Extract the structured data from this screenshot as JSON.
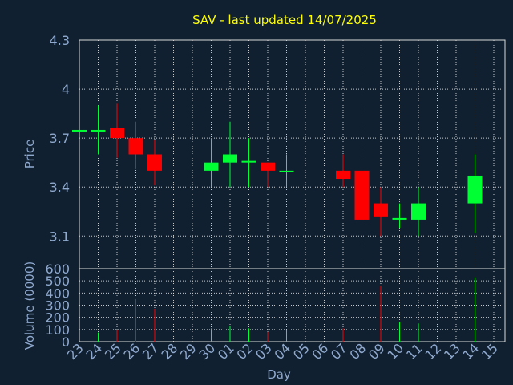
{
  "colors": {
    "background": "#102030",
    "title": "#ffff00",
    "axis_text": "#8fa9cf",
    "grid": "#e8e8e8",
    "frame": "#d8d8d8",
    "up": "#00ff33",
    "down": "#ff0000"
  },
  "chart_data": [
    {
      "type": "candlestick",
      "title": "SAV - last updated 14/07/2025",
      "ylabel": "Price",
      "ylim": [
        2.9,
        4.3
      ],
      "yticks": [
        "4.3",
        "4",
        "3.7",
        "3.4",
        "3.1"
      ],
      "ytick_values": [
        4.3,
        4.0,
        3.7,
        3.4,
        3.1
      ],
      "grid": true,
      "x": [
        "23",
        "24",
        "25",
        "26",
        "27",
        "28",
        "29",
        "30",
        "01",
        "02",
        "03",
        "04",
        "05",
        "06",
        "07",
        "08",
        "09",
        "10",
        "11",
        "12",
        "13",
        "14",
        "15"
      ],
      "candles": [
        {
          "x": "23",
          "open": 3.75,
          "high": 3.75,
          "low": 3.75,
          "close": 3.75
        },
        {
          "x": "24",
          "open": 3.75,
          "high": 3.9,
          "low": 3.6,
          "close": 3.75
        },
        {
          "x": "25",
          "open": 3.76,
          "high": 3.91,
          "low": 3.58,
          "close": 3.7
        },
        {
          "x": "26",
          "open": 3.7,
          "high": 3.8,
          "low": 3.51,
          "close": 3.6
        },
        {
          "x": "27",
          "open": 3.6,
          "high": 3.69,
          "low": 3.41,
          "close": 3.5
        },
        {
          "x": "30",
          "open": 3.5,
          "high": 3.7,
          "low": 3.4,
          "close": 3.55
        },
        {
          "x": "01",
          "open": 3.55,
          "high": 3.8,
          "low": 3.4,
          "close": 3.6
        },
        {
          "x": "02",
          "open": 3.55,
          "high": 3.7,
          "low": 3.4,
          "close": 3.56
        },
        {
          "x": "03",
          "open": 3.55,
          "high": 3.55,
          "low": 3.4,
          "close": 3.5
        },
        {
          "x": "04",
          "open": 3.5,
          "high": 3.6,
          "low": 3.4,
          "close": 3.5
        },
        {
          "x": "07",
          "open": 3.5,
          "high": 3.6,
          "low": 3.4,
          "close": 3.45
        },
        {
          "x": "08",
          "open": 3.5,
          "high": 3.6,
          "low": 3.1,
          "close": 3.2
        },
        {
          "x": "09",
          "open": 3.3,
          "high": 3.4,
          "low": 3.1,
          "close": 3.22
        },
        {
          "x": "10",
          "open": 3.2,
          "high": 3.3,
          "low": 3.15,
          "close": 3.21
        },
        {
          "x": "11",
          "open": 3.2,
          "high": 3.4,
          "low": 3.1,
          "close": 3.3
        },
        {
          "x": "14",
          "open": 3.3,
          "high": 3.6,
          "low": 3.12,
          "close": 3.47
        }
      ]
    },
    {
      "type": "bar",
      "ylabel": "Volume (0000)",
      "xlabel": "Day",
      "ylim": [
        0,
        600
      ],
      "yticks": [
        "600",
        "500",
        "400",
        "300",
        "200",
        "100",
        "0"
      ],
      "ytick_values": [
        600,
        500,
        400,
        300,
        200,
        100,
        0
      ],
      "grid": true,
      "categories": [
        "23",
        "24",
        "25",
        "26",
        "27",
        "28",
        "29",
        "30",
        "01",
        "02",
        "03",
        "04",
        "05",
        "06",
        "07",
        "08",
        "09",
        "10",
        "11",
        "12",
        "13",
        "14",
        "15"
      ],
      "bars": [
        {
          "x": "24",
          "value": 75,
          "direction": "up"
        },
        {
          "x": "25",
          "value": 95,
          "direction": "down"
        },
        {
          "x": "26",
          "value": 350,
          "direction": "down"
        },
        {
          "x": "27",
          "value": 270,
          "direction": "down"
        },
        {
          "x": "30",
          "value": 110,
          "direction": "up"
        },
        {
          "x": "01",
          "value": 125,
          "direction": "up"
        },
        {
          "x": "02",
          "value": 110,
          "direction": "up"
        },
        {
          "x": "03",
          "value": 80,
          "direction": "down"
        },
        {
          "x": "04",
          "value": 100,
          "direction": "up"
        },
        {
          "x": "07",
          "value": 110,
          "direction": "down"
        },
        {
          "x": "08",
          "value": 480,
          "direction": "down"
        },
        {
          "x": "09",
          "value": 460,
          "direction": "down"
        },
        {
          "x": "10",
          "value": 165,
          "direction": "up"
        },
        {
          "x": "11",
          "value": 150,
          "direction": "up"
        },
        {
          "x": "14",
          "value": 530,
          "direction": "up"
        }
      ]
    }
  ]
}
